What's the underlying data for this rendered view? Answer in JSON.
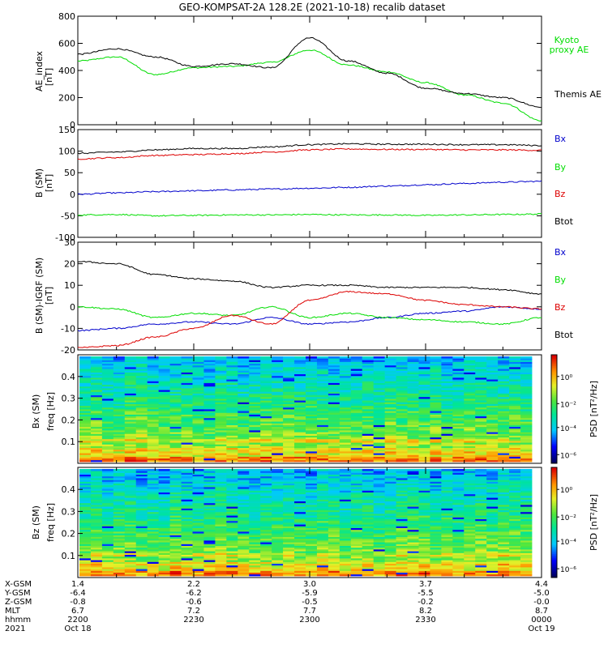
{
  "chart_data": [
    {
      "type": "line",
      "title": "GEO-KOMPSAT-2A 128.2E (2021-10-18) recalib dataset",
      "ylabel": "AE_index",
      "yunit": "[nT]",
      "ylim": [
        0,
        800
      ],
      "yticks": [
        0,
        200,
        400,
        600,
        800
      ],
      "x_hhmm": [
        "2200",
        "2210",
        "2220",
        "2230",
        "2240",
        "2250",
        "2300",
        "2310",
        "2320",
        "2330",
        "2340",
        "2350",
        "0000"
      ],
      "series": [
        {
          "name": "Kyoto proxy AE",
          "color": "#00dd00",
          "values": [
            470,
            500,
            370,
            420,
            430,
            460,
            550,
            440,
            390,
            310,
            220,
            160,
            30
          ]
        },
        {
          "name": "Themis AE",
          "color": "#000000",
          "values": [
            520,
            560,
            500,
            430,
            450,
            420,
            640,
            470,
            380,
            270,
            230,
            200,
            130
          ]
        }
      ]
    },
    {
      "type": "line",
      "ylabel": "B (SM)",
      "yunit": "[nT]",
      "ylim": [
        -100,
        150
      ],
      "yticks": [
        -100,
        -50,
        0,
        50,
        100,
        150
      ],
      "x_hhmm": [
        "2200",
        "2210",
        "2220",
        "2230",
        "2240",
        "2250",
        "2300",
        "2310",
        "2320",
        "2330",
        "2340",
        "2350",
        "0000"
      ],
      "series": [
        {
          "name": "Bx",
          "color": "#0000cc",
          "values": [
            0,
            3,
            6,
            8,
            10,
            12,
            14,
            16,
            19,
            22,
            25,
            28,
            30
          ]
        },
        {
          "name": "By",
          "color": "#00dd00",
          "values": [
            -48,
            -47,
            -50,
            -49,
            -48,
            -48,
            -47,
            -48,
            -48,
            -49,
            -48,
            -47,
            -46
          ]
        },
        {
          "name": "Bz",
          "color": "#dd0000",
          "values": [
            82,
            85,
            90,
            92,
            94,
            98,
            103,
            105,
            104,
            104,
            103,
            103,
            102
          ]
        },
        {
          "name": "Btot",
          "color": "#000000",
          "values": [
            95,
            98,
            103,
            106,
            106,
            110,
            115,
            117,
            116,
            116,
            115,
            115,
            113
          ]
        }
      ]
    },
    {
      "type": "line",
      "ylabel": "B (SM)-IGRF (SM)",
      "yunit": "[nT]",
      "ylim": [
        -20,
        30
      ],
      "yticks": [
        -20,
        -10,
        0,
        10,
        20,
        30
      ],
      "x_hhmm": [
        "2200",
        "2210",
        "2220",
        "2230",
        "2240",
        "2250",
        "2300",
        "2310",
        "2320",
        "2330",
        "2340",
        "2350",
        "0000"
      ],
      "series": [
        {
          "name": "Bx",
          "color": "#0000cc",
          "values": [
            -11,
            -10,
            -8,
            -7,
            -8,
            -5,
            -8,
            -7,
            -5,
            -3,
            -2,
            0,
            -1
          ]
        },
        {
          "name": "By",
          "color": "#00dd00",
          "values": [
            0,
            -1,
            -5,
            -3,
            -4,
            0,
            -5,
            -3,
            -5,
            -6,
            -7,
            -8,
            -5
          ]
        },
        {
          "name": "Bz",
          "color": "#dd0000",
          "values": [
            -19,
            -18,
            -14,
            -10,
            -4,
            -8,
            3,
            7,
            6,
            3,
            1,
            0,
            -1
          ]
        },
        {
          "name": "Btot",
          "color": "#000000",
          "values": [
            21,
            20,
            15,
            13,
            12,
            9,
            10,
            10,
            9,
            9,
            9,
            8,
            6
          ]
        }
      ]
    },
    {
      "type": "heatmap",
      "ylabel": "Bx (SM)",
      "ylabel2": "freq [Hz]",
      "yticks": [
        0.1,
        0.2,
        0.3,
        0.4
      ],
      "ylim": [
        0,
        0.5
      ],
      "colorbar_label": "PSD [nT²/Hz]",
      "colorbar_ticks": [
        "10⁰",
        "10⁻²",
        "10⁻⁴",
        "10⁻⁶"
      ]
    },
    {
      "type": "heatmap",
      "ylabel": "Bz (SM)",
      "ylabel2": "freq [Hz]",
      "yticks": [
        0.1,
        0.2,
        0.3,
        0.4
      ],
      "ylim": [
        0,
        0.5
      ],
      "colorbar_label": "PSD [nT²/Hz]",
      "colorbar_ticks": [
        "10⁰",
        "10⁻²",
        "10⁻⁴",
        "10⁻⁶"
      ]
    }
  ],
  "legend_labels": {
    "kyoto": [
      "Kyoto",
      "proxy AE"
    ],
    "themis": "Themis AE",
    "bx": "Bx",
    "by": "By",
    "bz": "Bz",
    "btot": "Btot"
  },
  "x_axis": {
    "row_labels": [
      "X-GSM",
      "Y-GSM",
      "Z-GSM",
      "MLT",
      "hhmm",
      "2021"
    ],
    "columns": [
      {
        "values": [
          "1.4",
          "-6.4",
          "-0.8",
          "6.7",
          "2200",
          "Oct 18"
        ]
      },
      {
        "values": [
          "2.2",
          "-6.2",
          "-0.6",
          "7.2",
          "2230",
          ""
        ]
      },
      {
        "values": [
          "3.0",
          "-5.9",
          "-0.5",
          "7.7",
          "2300",
          ""
        ]
      },
      {
        "values": [
          "3.7",
          "-5.5",
          "-0.2",
          "8.2",
          "2330",
          ""
        ]
      },
      {
        "values": [
          "4.4",
          "-5.0",
          "-0.0",
          "8.7",
          "0000",
          "Oct 19"
        ]
      }
    ]
  }
}
